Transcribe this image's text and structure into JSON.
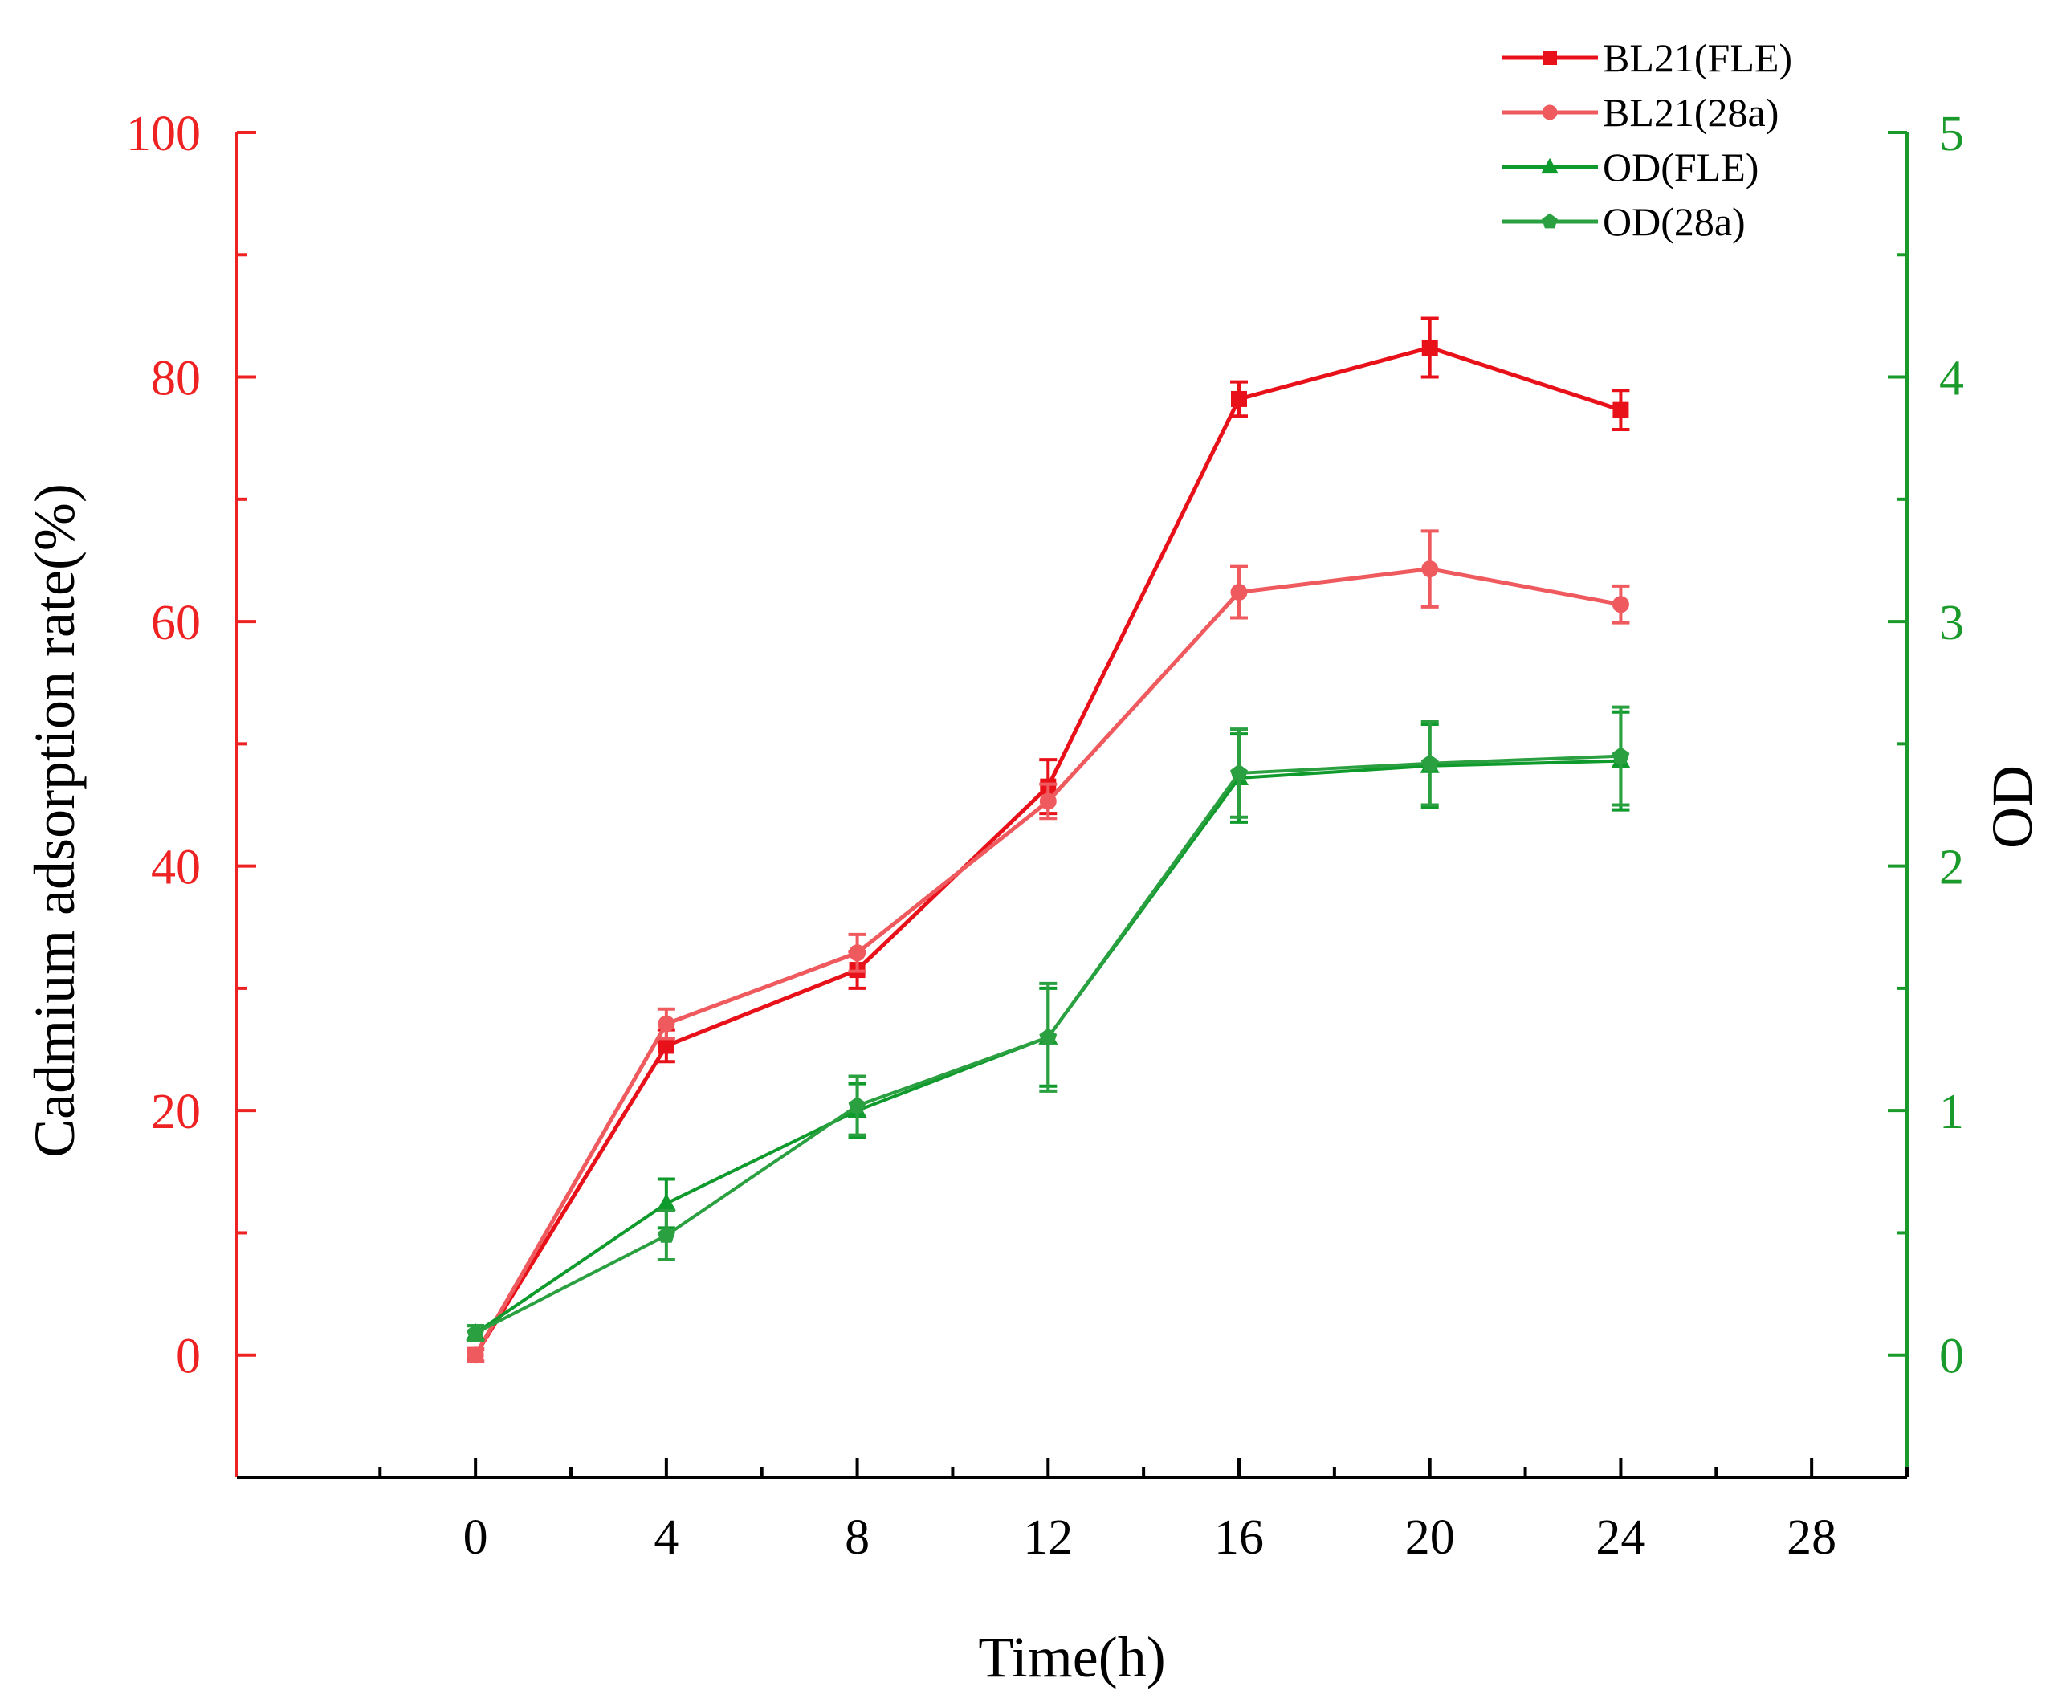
{
  "chart_data": {
    "type": "line",
    "title": "",
    "xlabel": "Time(h)",
    "ylabel": "Cadmium adsorption rate(%)",
    "y2label": "OD",
    "xlim": [
      -5,
      30
    ],
    "ylim": [
      -10,
      100
    ],
    "y2lim": [
      -0.5,
      5
    ],
    "x_ticks": [
      0,
      4,
      8,
      12,
      16,
      20,
      24,
      28
    ],
    "y_ticks": [
      0,
      20,
      40,
      60,
      80,
      100
    ],
    "y2_ticks": [
      0,
      1,
      2,
      3,
      4,
      5
    ],
    "x_tick_labels": [
      "0",
      "4",
      "8",
      "12",
      "16",
      "20",
      "24",
      "28"
    ],
    "y_tick_labels": [
      "0",
      "20",
      "40",
      "60",
      "80",
      "100"
    ],
    "y2_tick_labels": [
      "0",
      "1",
      "2",
      "3",
      "4",
      "5"
    ],
    "legend_position": "top-right",
    "colors": {
      "left_axis": "#ee2222",
      "right_axis": "#1a9a2a"
    },
    "series": [
      {
        "name": "BL21(FLE)",
        "axis": "left",
        "color": "#e8111a",
        "marker": "square",
        "x": [
          0,
          4,
          8,
          12,
          16,
          20,
          24
        ],
        "values": [
          0,
          25.3,
          31.5,
          46.5,
          78.2,
          82.4,
          77.3
        ],
        "errors": [
          0.5,
          1.3,
          1.5,
          2.2,
          1.4,
          2.4,
          1.6
        ]
      },
      {
        "name": "BL21(28a)",
        "axis": "left",
        "color": "#ef5a5e",
        "marker": "circle",
        "x": [
          0,
          4,
          8,
          12,
          16,
          20,
          24
        ],
        "values": [
          0,
          27.1,
          32.9,
          45.3,
          62.4,
          64.3,
          61.4
        ],
        "errors": [
          0.5,
          1.2,
          1.5,
          1.4,
          2.1,
          3.1,
          1.5
        ]
      },
      {
        "name": "OD(FLE)",
        "axis": "right",
        "color": "#0f9a2c",
        "marker": "triangle",
        "x": [
          0,
          4,
          8,
          12,
          16,
          20,
          24
        ],
        "values": [
          0.09,
          0.62,
          1.0,
          1.3,
          2.36,
          2.41,
          2.43
        ],
        "errors": [
          0.03,
          0.1,
          0.11,
          0.2,
          0.18,
          0.17,
          0.2
        ]
      },
      {
        "name": "OD(28a)",
        "axis": "right",
        "color": "#2aa040",
        "marker": "pentagon",
        "x": [
          0,
          4,
          8,
          12,
          16,
          20,
          24
        ],
        "values": [
          0.09,
          0.49,
          1.02,
          1.3,
          2.38,
          2.42,
          2.45
        ],
        "errors": [
          0.03,
          0.1,
          0.12,
          0.22,
          0.18,
          0.17,
          0.2
        ]
      }
    ]
  }
}
